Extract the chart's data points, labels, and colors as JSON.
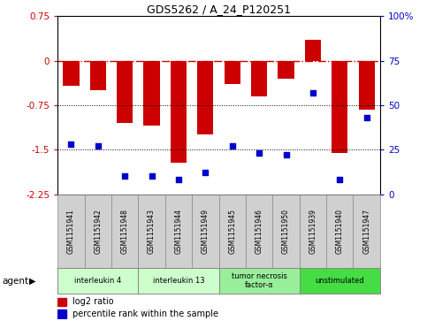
{
  "title": "GDS5262 / A_24_P120251",
  "samples": [
    "GSM1151941",
    "GSM1151942",
    "GSM1151948",
    "GSM1151943",
    "GSM1151944",
    "GSM1151949",
    "GSM1151945",
    "GSM1151946",
    "GSM1151950",
    "GSM1151939",
    "GSM1151940",
    "GSM1151947"
  ],
  "log2_ratio": [
    -0.42,
    -0.5,
    -1.05,
    -1.1,
    -1.72,
    -1.25,
    -0.4,
    -0.6,
    -0.3,
    0.35,
    -1.55,
    -0.82
  ],
  "percentile": [
    28,
    27,
    10,
    10,
    8,
    12,
    27,
    23,
    22,
    57,
    8,
    43
  ],
  "ylim_left": [
    -2.25,
    0.75
  ],
  "ylim_right": [
    0,
    100
  ],
  "yticks_left": [
    -2.25,
    -1.5,
    -0.75,
    0,
    0.75
  ],
  "yticks_right": [
    0,
    25,
    50,
    75,
    100
  ],
  "hline_zero": 0,
  "hline_minus075": -0.75,
  "hline_minus15": -1.5,
  "bar_color": "#cc0000",
  "dot_color": "#0000cc",
  "agent_groups": [
    {
      "label": "interleukin 4",
      "start": 0,
      "end": 2,
      "color": "#ccffcc"
    },
    {
      "label": "interleukin 13",
      "start": 3,
      "end": 5,
      "color": "#ccffcc"
    },
    {
      "label": "tumor necrosis\nfactor-α",
      "start": 6,
      "end": 8,
      "color": "#99ee99"
    },
    {
      "label": "unstimulated",
      "start": 9,
      "end": 11,
      "color": "#44dd44"
    }
  ],
  "legend_items": [
    {
      "label": "log2 ratio",
      "color": "#cc0000"
    },
    {
      "label": "percentile rank within the sample",
      "color": "#0000cc"
    }
  ],
  "agent_label": "agent",
  "zero_line_color": "#cc0000",
  "dot_line_color": "#000000",
  "sample_box_color": "#d0d0d0",
  "sample_box_edge": "#888888"
}
